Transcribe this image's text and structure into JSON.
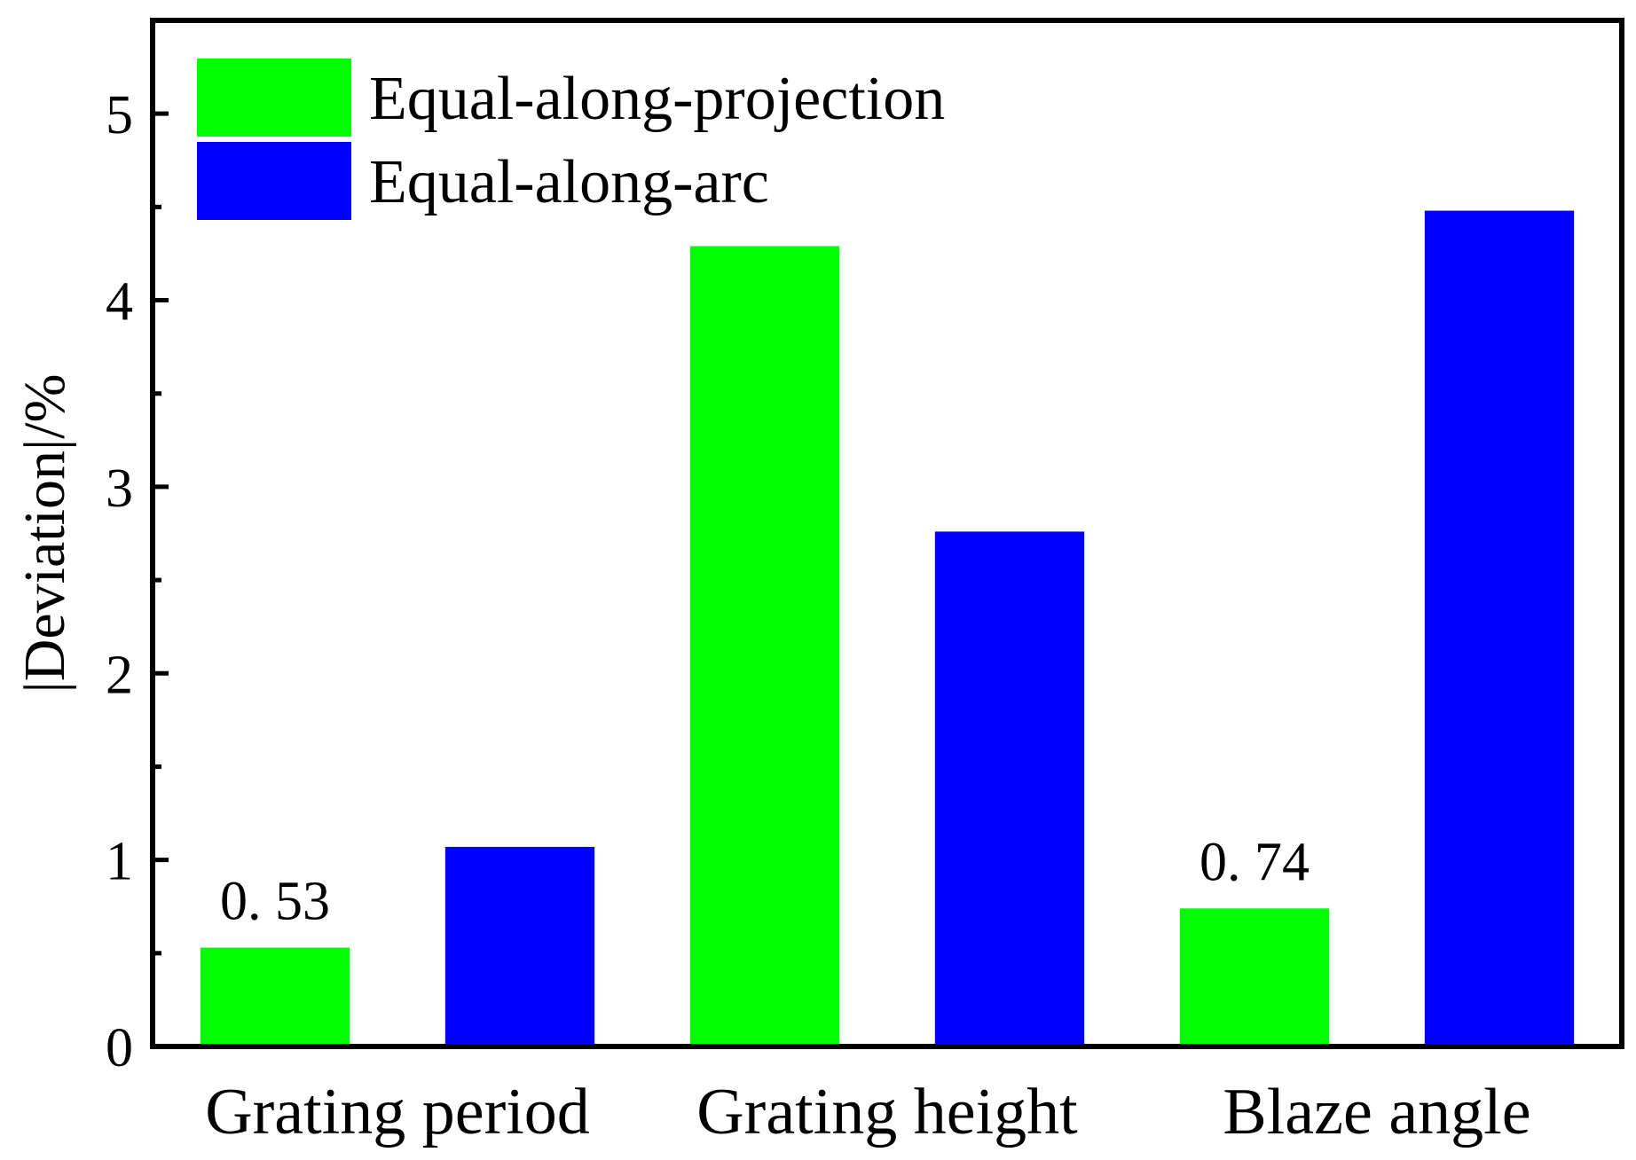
{
  "chart_data": {
    "type": "bar",
    "title": "",
    "xlabel": "",
    "ylabel": "|Deviation|/%",
    "ylim": [
      0,
      5.5
    ],
    "yticks": [
      0,
      1,
      2,
      3,
      4,
      5
    ],
    "grid": false,
    "legend_position": "top-left",
    "categories": [
      "Grating period",
      "Grating height",
      "Blaze angle"
    ],
    "series": [
      {
        "name": "Equal-along-projection",
        "color": "#00ff00",
        "values": [
          0.53,
          4.29,
          0.74
        ]
      },
      {
        "name": "Equal-along-arc",
        "color": "#0000ff",
        "values": [
          1.07,
          2.76,
          4.48
        ]
      }
    ],
    "annotations": [
      {
        "text": "0. 53",
        "category": "Grating period",
        "series": "Equal-along-projection"
      },
      {
        "text": "0. 74",
        "category": "Blaze angle",
        "series": "Equal-along-projection"
      }
    ]
  }
}
